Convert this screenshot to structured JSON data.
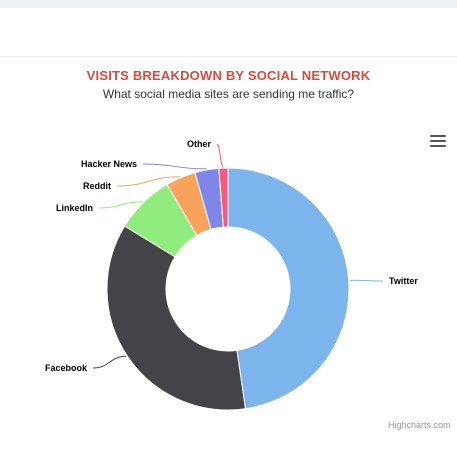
{
  "chart_data": {
    "type": "pie",
    "donut": true,
    "title": "VISITS BREAKDOWN BY SOCIAL NETWORK",
    "subtitle": "What social media sites are sending me traffic?",
    "slices": [
      {
        "label": "Twitter",
        "value": 47.7,
        "color": "#7cb5ec"
      },
      {
        "label": "Facebook",
        "value": 36.0,
        "color": "#434348"
      },
      {
        "label": "LinkedIn",
        "value": 7.9,
        "color": "#90ed7d"
      },
      {
        "label": "Reddit",
        "value": 4.0,
        "color": "#f7a35c"
      },
      {
        "label": "Hacker News",
        "value": 3.2,
        "color": "#8085e9"
      },
      {
        "label": "Other",
        "value": 1.2,
        "color": "#f15c80"
      }
    ]
  },
  "menu_icon": "hamburger-menu-icon",
  "credits": "Highcharts.com"
}
